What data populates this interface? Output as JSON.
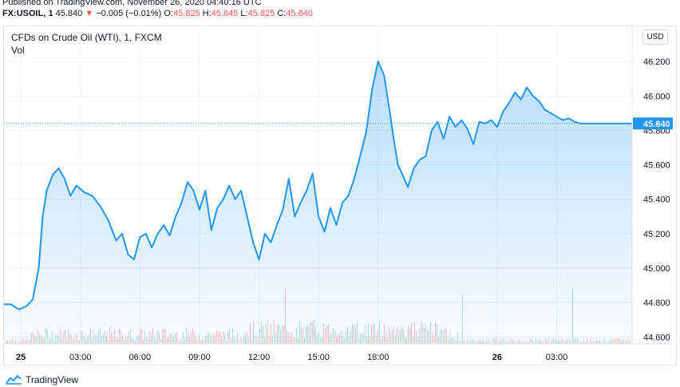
{
  "header": {
    "published": "Published on TradingView.com, November 26, 2020 04:40:16 UTC",
    "symbol": "FX:USOIL, 1",
    "last": "45.840",
    "change_arrow": "▼",
    "change": "−0.005 (−0.01%)",
    "o_label": "O:",
    "o_value": "45.825",
    "h_label": "H:",
    "h_value": "45.845",
    "l_label": "L:",
    "l_value": "45.825",
    "c_label": "C:",
    "c_value": "45.840"
  },
  "legend": {
    "title": "CFDs on Crude Oil (WTI), 1, FXCM",
    "volume": "Vol"
  },
  "currency_button": "USD",
  "price_tag": "45.840",
  "footer": {
    "brand": "TradingView"
  },
  "colors": {
    "line": "#2196f3",
    "down": "#ef5350",
    "up": "#26a69a",
    "price_tag_bg": "#2196f3"
  },
  "chart_data": {
    "type": "area",
    "title": "CFDs on Crude Oil (WTI), 1, FXCM",
    "xlabel": "",
    "ylabel": "",
    "x_ticks": [
      "25",
      "03:00",
      "06:00",
      "09:00",
      "12:00",
      "15:00",
      "18:00",
      "26",
      "03:00"
    ],
    "y_ticks": [
      "44.600",
      "44.800",
      "45.000",
      "45.200",
      "45.400",
      "45.600",
      "45.800",
      "46.000",
      "46.200"
    ],
    "ylim": [
      44.56,
      46.27
    ],
    "x_range_hours": [
      -0.85,
      30.8
    ],
    "last_value": 45.84,
    "grid": true,
    "series": [
      {
        "x": [
          -0.85,
          -0.5,
          -0.1,
          0.3,
          0.6,
          0.9,
          1.1,
          1.3,
          1.6,
          1.9,
          2.2,
          2.5,
          2.8,
          3.2,
          3.6,
          4.0,
          4.4,
          4.8,
          5.1,
          5.4,
          5.7,
          6.0,
          6.3,
          6.6,
          6.9,
          7.2,
          7.5,
          7.8,
          8.1,
          8.4,
          8.7,
          9.0,
          9.3,
          9.6,
          9.9,
          10.2,
          10.5,
          10.8,
          11.1,
          11.4,
          11.7,
          12.0,
          12.3,
          12.6,
          12.9,
          13.2,
          13.5,
          13.8,
          14.1,
          14.4,
          14.7,
          15.0,
          15.3,
          15.6,
          15.9,
          16.2,
          16.5,
          16.8,
          17.1,
          17.4,
          17.7,
          18.0,
          18.3,
          18.6,
          18.8,
          19.0,
          19.2,
          19.5,
          19.8,
          20.1,
          20.4,
          20.7,
          21.0,
          21.3,
          21.6,
          21.9,
          22.2,
          22.5,
          22.8,
          23.1,
          23.4,
          23.7,
          24.0,
          24.3,
          24.6,
          24.9,
          25.2,
          25.5,
          25.8,
          26.1,
          26.4,
          26.7,
          27.0,
          27.3,
          27.6,
          27.9,
          28.2,
          28.5,
          28.8,
          29.1,
          29.4,
          29.7,
          30.0,
          30.3,
          30.6,
          30.8
        ],
        "values": [
          44.79,
          44.79,
          44.76,
          44.78,
          44.82,
          45.0,
          45.3,
          45.45,
          45.54,
          45.58,
          45.52,
          45.42,
          45.48,
          45.44,
          45.42,
          45.36,
          45.28,
          45.16,
          45.2,
          45.08,
          45.05,
          45.18,
          45.2,
          45.12,
          45.2,
          45.25,
          45.19,
          45.3,
          45.38,
          45.5,
          45.45,
          45.34,
          45.45,
          45.22,
          45.35,
          45.4,
          45.48,
          45.4,
          45.45,
          45.3,
          45.15,
          45.05,
          45.2,
          45.15,
          45.25,
          45.34,
          45.52,
          45.3,
          45.38,
          45.45,
          45.55,
          45.3,
          45.21,
          45.35,
          45.25,
          45.38,
          45.42,
          45.52,
          45.65,
          45.79,
          46.04,
          46.2,
          46.12,
          45.9,
          45.74,
          45.6,
          45.55,
          45.47,
          45.58,
          45.63,
          45.65,
          45.8,
          45.85,
          45.75,
          45.88,
          45.82,
          45.86,
          45.81,
          45.72,
          45.85,
          45.84,
          45.86,
          45.82,
          45.91,
          45.96,
          46.02,
          45.98,
          46.05,
          46.0,
          45.97,
          45.92,
          45.9,
          45.88,
          45.86,
          45.87,
          45.85,
          45.84,
          45.84,
          45.84,
          45.84,
          45.84,
          45.84,
          45.84,
          45.84,
          45.84,
          45.84
        ]
      }
    ]
  }
}
